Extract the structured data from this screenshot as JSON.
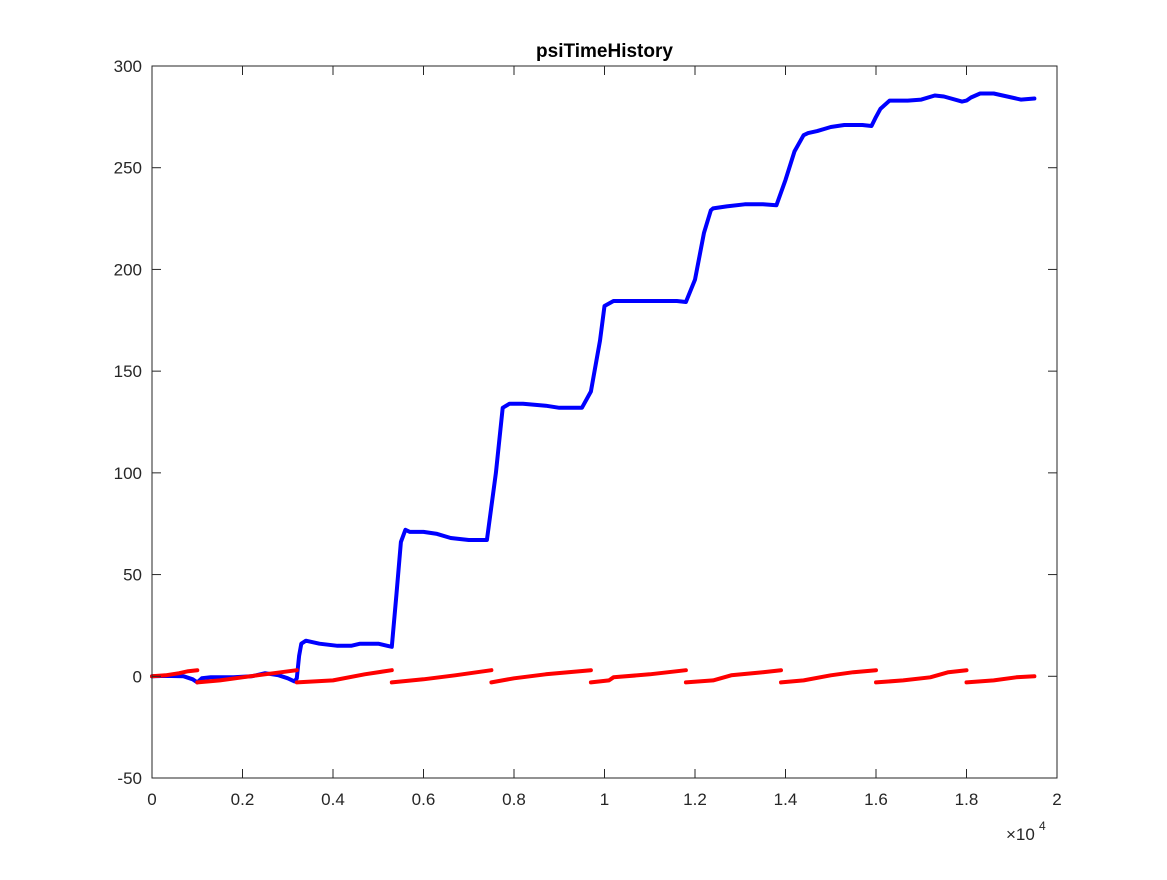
{
  "colors": {
    "background": "#ffffff",
    "axes": "#262626",
    "series_blue": "#0000ff",
    "series_red": "#ff0000"
  },
  "chart_data": {
    "type": "line",
    "title": "psiTimeHistory",
    "xlabel": "",
    "ylabel": "",
    "xlim": [
      0,
      20000
    ],
    "ylim": [
      -50,
      300
    ],
    "grid": false,
    "legend": null,
    "x_exponent_label": "×10",
    "x_exponent_power": "4",
    "x_ticks": [
      {
        "value": 0,
        "label": "0"
      },
      {
        "value": 2000,
        "label": "0.2"
      },
      {
        "value": 4000,
        "label": "0.4"
      },
      {
        "value": 6000,
        "label": "0.6"
      },
      {
        "value": 8000,
        "label": "0.8"
      },
      {
        "value": 10000,
        "label": "1"
      },
      {
        "value": 12000,
        "label": "1.2"
      },
      {
        "value": 14000,
        "label": "1.4"
      },
      {
        "value": 16000,
        "label": "1.6"
      },
      {
        "value": 18000,
        "label": "1.8"
      },
      {
        "value": 20000,
        "label": "2"
      }
    ],
    "y_ticks": [
      {
        "value": -50,
        "label": "-50"
      },
      {
        "value": 0,
        "label": "0"
      },
      {
        "value": 50,
        "label": "50"
      },
      {
        "value": 100,
        "label": "100"
      },
      {
        "value": 150,
        "label": "150"
      },
      {
        "value": 200,
        "label": "200"
      },
      {
        "value": 250,
        "label": "250"
      },
      {
        "value": 300,
        "label": "300"
      }
    ],
    "series": [
      {
        "color": "#0000ff",
        "segments": [
          [
            [
              0,
              0
            ],
            [
              300,
              0.2
            ],
            [
              700,
              0
            ],
            [
              900,
              -1.5
            ],
            [
              1000,
              -3
            ],
            [
              1100,
              -1
            ],
            [
              1300,
              -0.5
            ],
            [
              1800,
              -0.5
            ],
            [
              2200,
              0
            ],
            [
              2500,
              1.5
            ],
            [
              2800,
              0.5
            ],
            [
              3000,
              -1
            ],
            [
              3150,
              -2.5
            ],
            [
              3200,
              -1
            ],
            [
              3250,
              10
            ],
            [
              3300,
              16
            ],
            [
              3400,
              17.5
            ],
            [
              3700,
              16
            ],
            [
              4100,
              15
            ],
            [
              4400,
              15
            ],
            [
              4600,
              16
            ],
            [
              5000,
              16
            ],
            [
              5200,
              15
            ],
            [
              5300,
              14.5
            ],
            [
              5400,
              40
            ],
            [
              5500,
              66
            ],
            [
              5600,
              72
            ],
            [
              5700,
              71
            ],
            [
              6000,
              71
            ],
            [
              6300,
              70
            ],
            [
              6600,
              68
            ],
            [
              7000,
              67
            ],
            [
              7400,
              67
            ],
            [
              7600,
              100
            ],
            [
              7750,
              132
            ],
            [
              7900,
              134
            ],
            [
              8200,
              134
            ],
            [
              8700,
              133
            ],
            [
              9000,
              132
            ],
            [
              9400,
              132
            ],
            [
              9500,
              132
            ],
            [
              9700,
              140
            ],
            [
              9900,
              165
            ],
            [
              10000,
              182
            ],
            [
              10200,
              184.5
            ],
            [
              10700,
              184.5
            ],
            [
              11300,
              184.5
            ],
            [
              11600,
              184.5
            ],
            [
              11800,
              184
            ],
            [
              12000,
              195
            ],
            [
              12200,
              218
            ],
            [
              12350,
              229
            ],
            [
              12400,
              230
            ],
            [
              12700,
              231
            ],
            [
              13100,
              232
            ],
            [
              13500,
              232
            ],
            [
              13800,
              231.5
            ],
            [
              14000,
              244
            ],
            [
              14200,
              258
            ],
            [
              14400,
              266
            ],
            [
              14500,
              267
            ],
            [
              14700,
              268
            ],
            [
              15000,
              270
            ],
            [
              15300,
              271
            ],
            [
              15700,
              271
            ],
            [
              15900,
              270.5
            ],
            [
              16000,
              275
            ],
            [
              16100,
              279
            ],
            [
              16300,
              283
            ],
            [
              16700,
              283
            ],
            [
              17000,
              283.5
            ],
            [
              17300,
              285.5
            ],
            [
              17500,
              285
            ],
            [
              17900,
              282.5
            ],
            [
              18000,
              283
            ],
            [
              18100,
              284.5
            ],
            [
              18300,
              286.5
            ],
            [
              18600,
              286.5
            ],
            [
              18900,
              285
            ],
            [
              19200,
              283.5
            ],
            [
              19500,
              284
            ]
          ]
        ]
      },
      {
        "color": "#ff0000",
        "segments": [
          [
            [
              0,
              0
            ],
            [
              300,
              0.5
            ],
            [
              600,
              1.5
            ],
            [
              800,
              2.5
            ],
            [
              1000,
              3
            ]
          ],
          [
            [
              1000,
              -3
            ],
            [
              1500,
              -2
            ],
            [
              2000,
              -0.5
            ],
            [
              2500,
              1
            ],
            [
              3200,
              3
            ]
          ],
          [
            [
              3200,
              -3
            ],
            [
              4000,
              -2
            ],
            [
              4700,
              1
            ],
            [
              5300,
              3
            ]
          ],
          [
            [
              5300,
              -3
            ],
            [
              6000,
              -1.5
            ],
            [
              6700,
              0.5
            ],
            [
              7500,
              3
            ]
          ],
          [
            [
              7500,
              -3
            ],
            [
              8000,
              -1
            ],
            [
              8700,
              1
            ],
            [
              9700,
              3
            ]
          ],
          [
            [
              9700,
              -3
            ],
            [
              10100,
              -2
            ],
            [
              10200,
              -0.5
            ],
            [
              11000,
              1
            ],
            [
              11800,
              3
            ]
          ],
          [
            [
              11800,
              -3
            ],
            [
              12400,
              -2
            ],
            [
              12800,
              0.5
            ],
            [
              13500,
              2
            ],
            [
              13900,
              3
            ]
          ],
          [
            [
              13900,
              -3
            ],
            [
              14400,
              -2
            ],
            [
              15000,
              0.5
            ],
            [
              15500,
              2
            ],
            [
              16000,
              3
            ]
          ],
          [
            [
              16000,
              -3
            ],
            [
              16600,
              -2
            ],
            [
              17200,
              -0.5
            ],
            [
              17600,
              2
            ],
            [
              18000,
              3
            ]
          ],
          [
            [
              18000,
              -3
            ],
            [
              18600,
              -2
            ],
            [
              19100,
              -0.5
            ],
            [
              19500,
              0
            ]
          ]
        ]
      }
    ]
  }
}
